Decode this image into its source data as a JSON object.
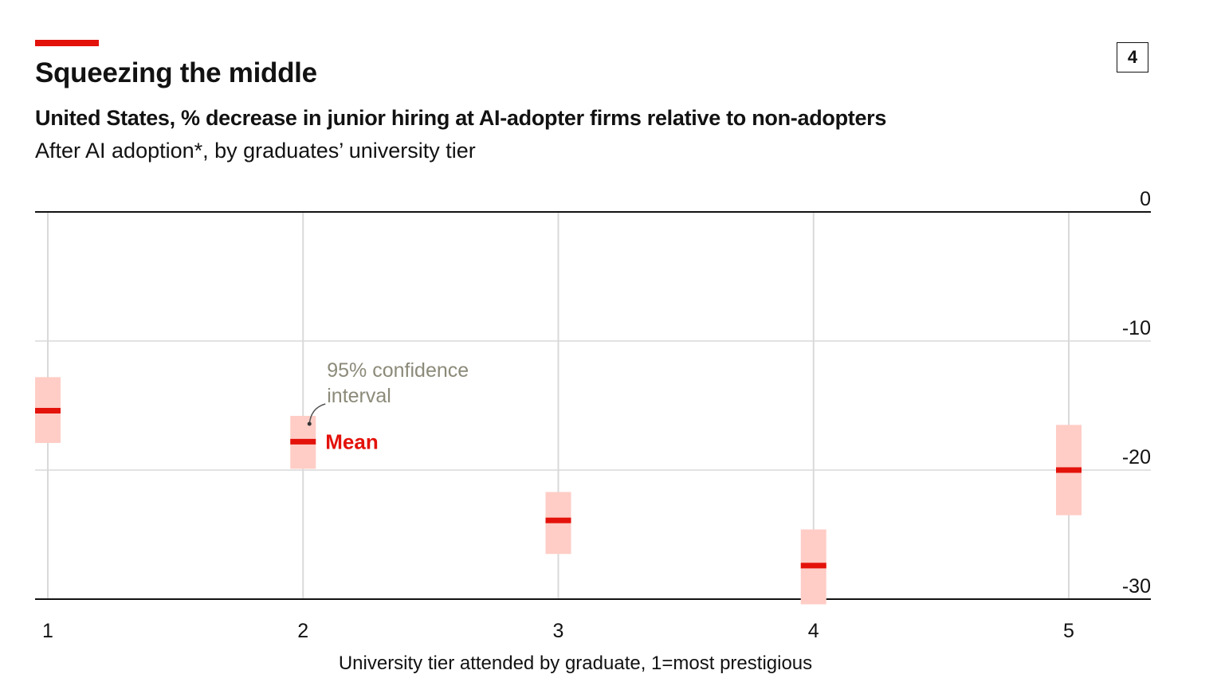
{
  "header": {
    "title": "Squeezing the middle",
    "badge": "4",
    "subtitle": "United States, % decrease in junior hiring at AI-adopter firms relative to non-adopters",
    "description": "After AI adoption*, by graduates’ university tier"
  },
  "colors": {
    "accent": "#e3120b",
    "mean": "#e3120b",
    "ci_fill": "#ffcdc6",
    "annotation_gray": "#8c8a79",
    "grid": "#d9d9d9",
    "axis": "#121212"
  },
  "chart_data": {
    "type": "scatter",
    "title": "Squeezing the middle",
    "xlabel": "University tier attended by graduate, 1=most prestigious",
    "ylabel": "",
    "categories": [
      "1",
      "2",
      "3",
      "4",
      "5"
    ],
    "ylim": [
      -30,
      0
    ],
    "yticks": [
      0,
      -10,
      -20,
      -30
    ],
    "ytick_labels": [
      "0",
      "-10",
      "-20",
      "-30"
    ],
    "series": [
      {
        "name": "Mean",
        "values": [
          -15.4,
          -17.8,
          -23.9,
          -27.4,
          -20.0
        ]
      },
      {
        "name": "95% confidence interval",
        "lower": [
          -17.9,
          -19.9,
          -26.5,
          -30.4,
          -23.5
        ],
        "upper": [
          -12.8,
          -15.8,
          -21.7,
          -24.6,
          -16.5
        ]
      }
    ],
    "annotations": {
      "ci_label": [
        "95% confidence",
        "interval"
      ],
      "mean_label": "Mean",
      "anchor_category": "2"
    }
  }
}
